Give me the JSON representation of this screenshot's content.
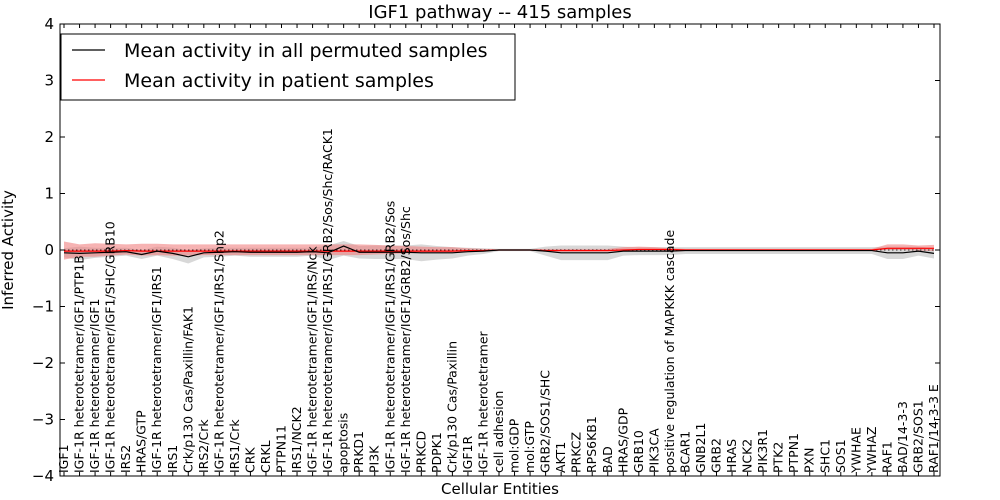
{
  "chart_data": {
    "type": "line",
    "title": "IGF1 pathway -- 415 samples",
    "xlabel": "Cellular Entities",
    "ylabel": "Inferred Activity",
    "ylim": [
      -4,
      4
    ],
    "yticks": [
      -4,
      -3,
      -2,
      -1,
      0,
      1,
      2,
      3,
      4
    ],
    "ytick_labels": [
      "−4",
      "−3",
      "−2",
      "−1",
      "0",
      "1",
      "2",
      "3",
      "4"
    ],
    "legend_position": "top-left",
    "categories": [
      "IGF1",
      "IGF-1R heterotetramer/IGF1/PTP1B",
      "IGF-1R heterotetramer/IGF1",
      "IGF-1R heterotetramer/IGF1/SHC/GRB10",
      "IRS2",
      "HRAS/GTP",
      "IGF-1R heterotetramer/IGF1/IRS1",
      "IRS1",
      "Crk/p130 Cas/Paxillin/FAK1",
      "IRS2/Crk",
      "IGF-1R heterotetramer/IGF1/IRS1/Shp2",
      "IRS1/Crk",
      "CRK",
      "CRKL",
      "PTPN11",
      "IRS1/NCK2",
      "IGF-1R heterotetramer/IGF1/IRS/Nck",
      "IGF-1R heterotetramer/IGF1/IRS1/GRB2/Sos/Shc/RACK1",
      "apoptosis",
      "PRKD1",
      "PI3K",
      "IGF-1R heterotetramer/IGF1/IRS1/GRB2/Sos",
      "IGF-1R heterotetramer/IGF1/GRB2/Sos/Shc",
      "PRKCD",
      "PDPK1",
      "Crk/p130 Cas/Paxillin",
      "IGF1R",
      "IGF-1R heterotetramer",
      "cell adhesion",
      "mol:GDP",
      "mol:GTP",
      "GRB2/SOS1/SHC",
      "AKT1",
      "PRKCZ",
      "RPS6KB1",
      "BAD",
      "HRAS/GDP",
      "GRB10",
      "PIK3CA",
      "positive regulation of MAPKKK cascade",
      "BCAR1",
      "GNB2L1",
      "GRB2",
      "HRAS",
      "NCK2",
      "PIK3R1",
      "PTK2",
      "PTPN1",
      "PXN",
      "SHC1",
      "SOS1",
      "YWHAE",
      "YWHAZ",
      "RAF1",
      "BAD/14-3-3",
      "GRB2/SOS1",
      "RAF1/14-3-3 E"
    ],
    "series": [
      {
        "name": "Mean activity in all permuted samples",
        "color": "#000000",
        "values": [
          -0.05,
          -0.06,
          -0.05,
          -0.04,
          -0.03,
          -0.08,
          -0.02,
          -0.06,
          -0.12,
          -0.05,
          -0.04,
          -0.03,
          -0.04,
          -0.04,
          -0.04,
          -0.04,
          -0.03,
          -0.05,
          0.07,
          -0.04,
          -0.04,
          -0.04,
          -0.04,
          -0.05,
          -0.05,
          -0.05,
          -0.03,
          -0.02,
          0.0,
          0.0,
          0.0,
          -0.02,
          -0.05,
          -0.05,
          -0.05,
          -0.05,
          -0.02,
          -0.02,
          -0.02,
          -0.02,
          -0.01,
          -0.01,
          -0.01,
          -0.01,
          -0.01,
          -0.01,
          -0.01,
          -0.01,
          -0.01,
          -0.01,
          -0.01,
          -0.01,
          -0.01,
          -0.05,
          -0.05,
          -0.02,
          -0.06
        ],
        "lower": [
          -0.13,
          -0.18,
          -0.14,
          -0.12,
          -0.1,
          -0.16,
          -0.1,
          -0.16,
          -0.24,
          -0.13,
          -0.12,
          -0.1,
          -0.12,
          -0.12,
          -0.12,
          -0.12,
          -0.1,
          -0.18,
          -0.1,
          -0.15,
          -0.16,
          -0.16,
          -0.16,
          -0.2,
          -0.17,
          -0.15,
          -0.1,
          -0.07,
          -0.02,
          -0.02,
          -0.02,
          -0.1,
          -0.18,
          -0.18,
          -0.18,
          -0.18,
          -0.1,
          -0.09,
          -0.09,
          -0.09,
          -0.07,
          -0.07,
          -0.07,
          -0.07,
          -0.07,
          -0.07,
          -0.07,
          -0.07,
          -0.07,
          -0.07,
          -0.07,
          -0.07,
          -0.07,
          -0.16,
          -0.16,
          -0.1,
          -0.15
        ],
        "upper": [
          0.03,
          0.06,
          0.04,
          0.04,
          0.04,
          0.0,
          0.06,
          0.04,
          0.0,
          0.03,
          0.04,
          0.04,
          0.04,
          0.04,
          0.04,
          0.04,
          0.04,
          0.08,
          0.16,
          0.07,
          0.08,
          0.08,
          0.08,
          0.1,
          0.07,
          0.05,
          0.04,
          0.03,
          0.02,
          0.02,
          0.02,
          0.06,
          0.08,
          0.08,
          0.08,
          0.08,
          0.06,
          0.05,
          0.05,
          0.05,
          0.05,
          0.05,
          0.05,
          0.05,
          0.05,
          0.05,
          0.05,
          0.05,
          0.05,
          0.05,
          0.05,
          0.05,
          0.05,
          0.06,
          0.06,
          0.06,
          0.03
        ]
      },
      {
        "name": "Mean activity in patient samples",
        "color": "#ff0000",
        "values": [
          -0.02,
          -0.02,
          -0.02,
          -0.02,
          -0.01,
          -0.02,
          -0.02,
          -0.02,
          -0.02,
          -0.02,
          -0.02,
          -0.02,
          -0.02,
          -0.02,
          -0.02,
          -0.02,
          -0.02,
          -0.02,
          -0.02,
          -0.02,
          -0.02,
          -0.02,
          -0.02,
          -0.02,
          -0.02,
          -0.02,
          -0.01,
          -0.01,
          0.0,
          0.0,
          0.0,
          -0.01,
          -0.01,
          -0.01,
          -0.01,
          -0.01,
          0.0,
          0.01,
          0.01,
          0.01,
          0.0,
          0.0,
          0.0,
          0.0,
          0.0,
          0.0,
          0.0,
          0.0,
          0.0,
          0.0,
          0.0,
          0.0,
          0.0,
          0.03,
          0.03,
          0.03,
          0.03
        ],
        "lower": [
          -0.17,
          -0.12,
          -0.12,
          -0.1,
          -0.08,
          -0.1,
          -0.09,
          -0.1,
          -0.1,
          -0.09,
          -0.09,
          -0.09,
          -0.09,
          -0.09,
          -0.09,
          -0.09,
          -0.09,
          -0.09,
          -0.09,
          -0.09,
          -0.08,
          -0.07,
          -0.06,
          -0.05,
          -0.05,
          -0.05,
          -0.04,
          -0.03,
          -0.01,
          -0.01,
          -0.01,
          -0.03,
          -0.03,
          -0.03,
          -0.03,
          -0.03,
          -0.02,
          -0.01,
          -0.01,
          -0.02,
          -0.01,
          -0.01,
          -0.01,
          -0.01,
          -0.01,
          -0.01,
          -0.01,
          -0.01,
          -0.01,
          -0.01,
          -0.01,
          -0.01,
          -0.01,
          0.0,
          0.0,
          -0.01,
          -0.02
        ],
        "upper": [
          0.15,
          0.1,
          0.12,
          0.11,
          0.1,
          0.11,
          0.11,
          0.1,
          0.1,
          0.1,
          0.1,
          0.1,
          0.1,
          0.1,
          0.1,
          0.1,
          0.1,
          0.1,
          0.1,
          0.1,
          0.09,
          0.08,
          0.07,
          0.06,
          0.05,
          0.05,
          0.03,
          0.02,
          0.01,
          0.01,
          0.01,
          0.02,
          0.02,
          0.02,
          0.02,
          0.02,
          0.05,
          0.06,
          0.05,
          0.03,
          0.02,
          0.02,
          0.02,
          0.02,
          0.02,
          0.02,
          0.02,
          0.02,
          0.02,
          0.02,
          0.02,
          0.02,
          0.02,
          0.1,
          0.1,
          0.08,
          0.09
        ]
      }
    ],
    "band_colors": {
      "permuted": "#c8c8c8",
      "patient": "#f08080"
    }
  }
}
